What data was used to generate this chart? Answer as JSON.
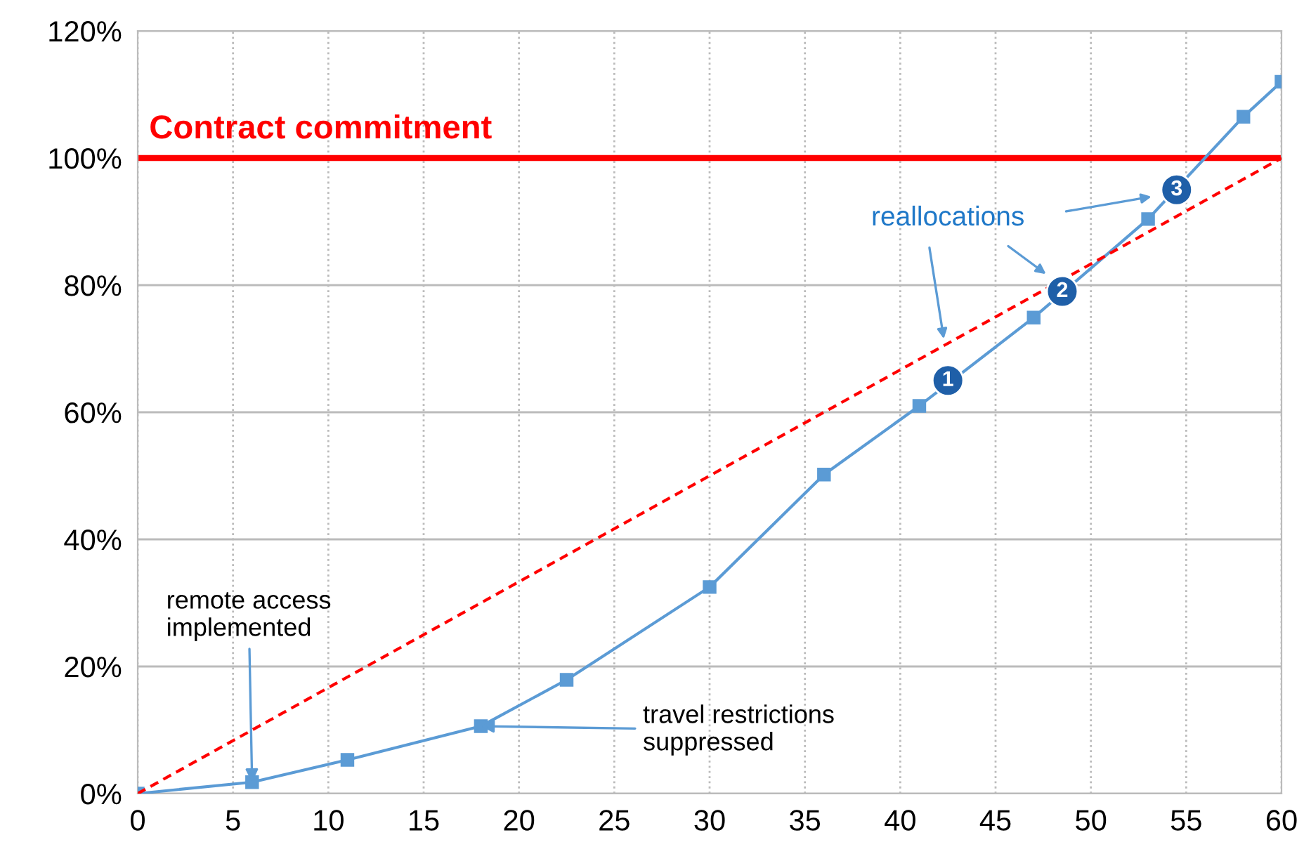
{
  "chart_data": {
    "type": "line",
    "xlim": [
      0,
      60
    ],
    "xticks": [
      0,
      5,
      10,
      15,
      20,
      25,
      30,
      35,
      40,
      45,
      50,
      55,
      60
    ],
    "ylim": [
      0,
      120
    ],
    "yticks": [
      {
        "value": 0,
        "label": "0%"
      },
      {
        "value": 20,
        "label": "20%"
      },
      {
        "value": 40,
        "label": "40%"
      },
      {
        "value": 60,
        "label": "60%"
      },
      {
        "value": 80,
        "label": "80%"
      },
      {
        "value": 100,
        "label": "100%"
      },
      {
        "value": 120,
        "label": "120%"
      }
    ],
    "grid": true,
    "marker": "square",
    "line_style": "solid",
    "series": [
      {
        "color": "#5b9bd5",
        "x": [
          0,
          6,
          11,
          18,
          22.5,
          30,
          36,
          41,
          47,
          53,
          58,
          60
        ],
        "values": [
          0,
          1.8,
          5.3,
          10.6,
          17.9,
          32.5,
          50.2,
          61,
          74.9,
          90.4,
          106.5,
          112
        ]
      },
      {
        "color": "#ff0000",
        "line_style": "dashed",
        "marker": "none",
        "x": [
          0,
          60
        ],
        "values": [
          0,
          100
        ]
      }
    ],
    "ref_lines": [
      {
        "axis": "y",
        "value": 100,
        "label": "Contract commitment",
        "color": "#ff0000"
      }
    ],
    "annotations": [
      {
        "text": "remote access implemented",
        "x": 6,
        "y": 1.8
      },
      {
        "text": "travel restrictions suppressed",
        "x": 18,
        "y": 10.6
      },
      {
        "text": "1",
        "x": 42.5,
        "y": 65
      },
      {
        "text": "2",
        "x": 48.5,
        "y": 79
      },
      {
        "text": "3",
        "x": 54.5,
        "y": 95
      },
      "reallocations"
    ]
  }
}
